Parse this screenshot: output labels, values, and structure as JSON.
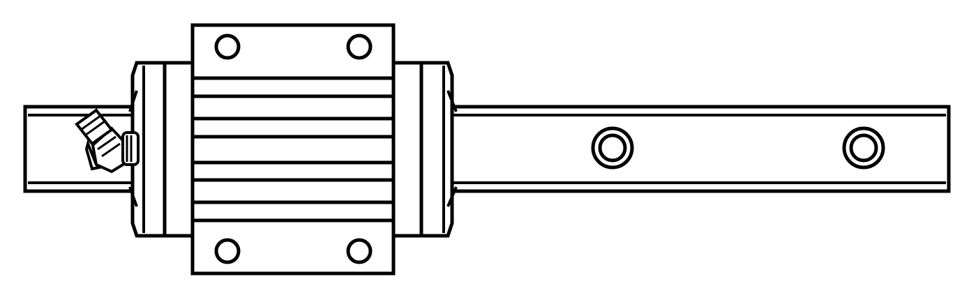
{
  "drawing": {
    "subject": "linear-guide-rail-with-carriage-block",
    "colors": {
      "line": "#000000",
      "background": "#ffffff"
    },
    "rail": {
      "visible_mounting_holes": 2
    },
    "carriage": {
      "top_mounting_holes": 2,
      "bottom_mounting_holes": 2
    },
    "grease_fitting": {
      "position": "left-end-seal",
      "orientation": "angled-45"
    }
  }
}
